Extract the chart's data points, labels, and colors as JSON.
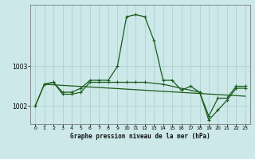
{
  "title": "Graphe pression niveau de la mer (hPa)",
  "background_color": "#cce8e8",
  "line_color": "#1a5c1a",
  "xlim": [
    -0.5,
    23.5
  ],
  "ylim": [
    1001.55,
    1004.55
  ],
  "yticks": [
    1002,
    1003
  ],
  "xticks": [
    0,
    1,
    2,
    3,
    4,
    5,
    6,
    7,
    8,
    9,
    10,
    11,
    12,
    13,
    14,
    15,
    16,
    17,
    18,
    19,
    20,
    21,
    22,
    23
  ],
  "grid_color": "#aacccc",
  "line1_x": [
    0,
    1,
    2,
    3,
    4,
    5,
    6,
    7,
    8,
    9,
    10,
    11,
    12,
    13,
    14,
    15,
    16,
    17,
    18,
    19,
    20,
    21,
    22,
    23
  ],
  "line1_y": [
    1002.0,
    1002.55,
    1002.6,
    1002.35,
    1002.35,
    1002.45,
    1002.65,
    1002.65,
    1002.65,
    1003.0,
    1004.25,
    1004.3,
    1004.25,
    1003.65,
    1002.65,
    1002.65,
    1002.4,
    1002.5,
    1002.35,
    1001.75,
    1002.2,
    1002.2,
    1002.5,
    1002.5
  ],
  "line2_x": [
    0,
    1,
    2,
    3,
    4,
    5,
    6,
    7,
    8,
    9,
    10,
    11,
    12,
    14,
    18,
    19,
    20,
    21,
    22,
    23
  ],
  "line2_y": [
    1002.0,
    1002.55,
    1002.6,
    1002.3,
    1002.3,
    1002.35,
    1002.6,
    1002.6,
    1002.6,
    1002.6,
    1002.6,
    1002.6,
    1002.6,
    1002.55,
    1002.35,
    1001.65,
    1001.9,
    1002.15,
    1002.45,
    1002.45
  ],
  "line3_x": [
    1,
    23
  ],
  "line3_y": [
    1002.55,
    1002.25
  ]
}
